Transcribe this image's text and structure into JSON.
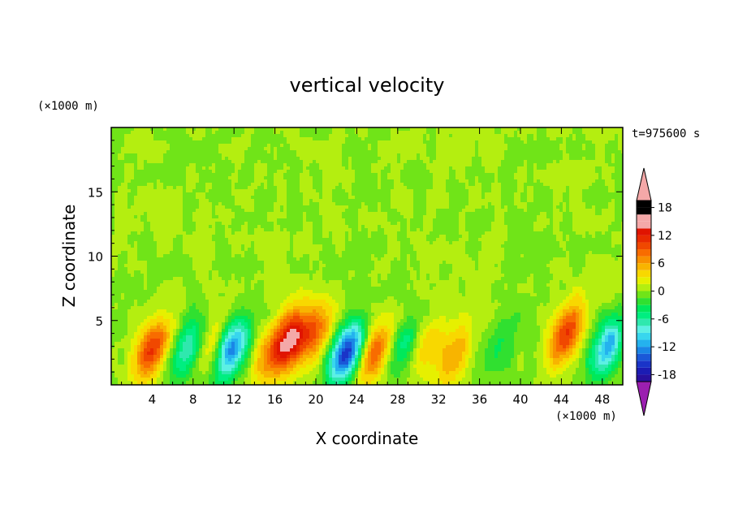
{
  "chart_data": {
    "type": "heatmap",
    "title": "vertical velocity",
    "xlabel": "X coordinate",
    "ylabel": "Z coordinate",
    "x_unit": "(×1000 m)",
    "y_unit": "(×1000 m)",
    "time_label": "t=975600 s",
    "xlim": [
      0,
      50
    ],
    "ylim": [
      0,
      20
    ],
    "x_ticks": [
      "4",
      "8",
      "12",
      "16",
      "20",
      "24",
      "28",
      "32",
      "36",
      "40",
      "44",
      "48"
    ],
    "y_ticks": [
      "5",
      "10",
      "15"
    ],
    "colorbar": {
      "levels": [
        -21,
        -19.5,
        -18,
        -16.5,
        -15,
        -13.5,
        -12,
        -10.5,
        -9,
        -7.5,
        -6,
        -4.5,
        -3,
        -1.5,
        0,
        1.5,
        3,
        4.5,
        6,
        7.5,
        9,
        10.5,
        12,
        13.5,
        15,
        16.5,
        18,
        19.5,
        21
      ],
      "tick_labels": [
        "18",
        "12",
        "6",
        "0",
        "-6",
        "-12",
        "-18"
      ],
      "colors": [
        "#9b1fb0",
        "#3a0fa0",
        "#28109e",
        "#1c1cb4",
        "#1a34c8",
        "#1a58d8",
        "#1a86e6",
        "#24b2ee",
        "#38d6ee",
        "#5cf0e4",
        "#2fe8ae",
        "#00ee80",
        "#00e85a",
        "#30e030",
        "#70e418",
        "#b4ee10",
        "#e6f000",
        "#f8d800",
        "#f8b400",
        "#f89000",
        "#f86c00",
        "#f04800",
        "#e82a00",
        "#e01400",
        "#f4a8a8"
      ],
      "over_color": "#f4a8a8",
      "under_color": "#9b1fb0"
    },
    "features": [
      {
        "x": 4.0,
        "z": 2.8,
        "w": 10.5
      },
      {
        "x": 7.5,
        "z": 2.8,
        "w": -8.0
      },
      {
        "x": 9.8,
        "z": 3.2,
        "w": 4.0
      },
      {
        "x": 11.8,
        "z": 2.8,
        "w": -13.0
      },
      {
        "x": 15.5,
        "z": 2.5,
        "w": 6.0
      },
      {
        "x": 17.5,
        "z": 3.5,
        "w": 13.0
      },
      {
        "x": 19.8,
        "z": 4.0,
        "w": 8.0
      },
      {
        "x": 23.0,
        "z": 2.5,
        "w": -16.0
      },
      {
        "x": 25.8,
        "z": 2.5,
        "w": 9.0
      },
      {
        "x": 28.5,
        "z": 3.0,
        "w": -5.0
      },
      {
        "x": 31.0,
        "z": 3.0,
        "w": 4.5
      },
      {
        "x": 33.5,
        "z": 2.2,
        "w": 6.0
      },
      {
        "x": 38.0,
        "z": 3.0,
        "w": -3.5
      },
      {
        "x": 44.5,
        "z": 4.0,
        "w": 11.0
      },
      {
        "x": 48.5,
        "z": 3.0,
        "w": -11.0
      }
    ]
  }
}
